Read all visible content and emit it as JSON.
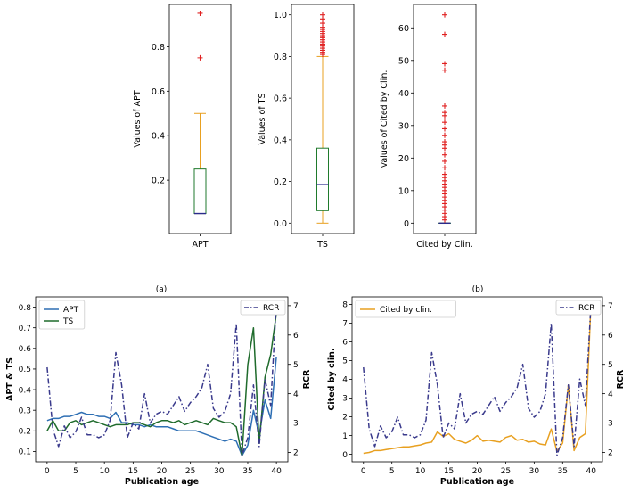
{
  "captions": {
    "a": "(a)",
    "b": "(b)"
  },
  "chart_data": [
    {
      "type": "box",
      "category": "APT",
      "ylabel": "Values of APT",
      "ylim": [
        -0.04,
        0.99
      ],
      "yticks": [
        "0.2",
        "0.4",
        "0.6",
        "0.8"
      ],
      "ytick_values": [
        0.2,
        0.4,
        0.6,
        0.8
      ],
      "whisker_low": 0.05,
      "q1": 0.05,
      "median": 0.05,
      "q3": 0.25,
      "whisker_high": 0.5,
      "outliers": [
        0.75,
        0.95
      ]
    },
    {
      "type": "box",
      "category": "TS",
      "ylabel": "Values of TS",
      "ylim": [
        -0.05,
        1.05
      ],
      "yticks": [
        "0.0",
        "0.2",
        "0.4",
        "0.6",
        "0.8",
        "1.0"
      ],
      "ytick_values": [
        0.0,
        0.2,
        0.4,
        0.6,
        0.8,
        1.0
      ],
      "whisker_low": 0.0,
      "q1": 0.06,
      "median": 0.185,
      "q3": 0.36,
      "whisker_high": 0.8,
      "outliers": [
        0.81,
        0.82,
        0.83,
        0.84,
        0.85,
        0.86,
        0.87,
        0.88,
        0.89,
        0.9,
        0.91,
        0.92,
        0.93,
        0.94,
        0.96,
        0.98,
        1.0
      ]
    },
    {
      "type": "box",
      "category": "Cited by Clin.",
      "ylabel": "Values of Cited by Clin.",
      "ylim": [
        -3.2,
        67.2
      ],
      "yticks": [
        "0",
        "10",
        "20",
        "30",
        "40",
        "50",
        "60"
      ],
      "ytick_values": [
        0,
        10,
        20,
        30,
        40,
        50,
        60
      ],
      "whisker_low": 0,
      "q1": 0,
      "median": 0,
      "q3": 0,
      "whisker_high": 0,
      "outliers": [
        1,
        2,
        3,
        4,
        5,
        6,
        7,
        8,
        9,
        10,
        11,
        12,
        13,
        14,
        15,
        17,
        19,
        21,
        23,
        24,
        25,
        27,
        29,
        31,
        33,
        34,
        36,
        47,
        49,
        58,
        64
      ]
    },
    {
      "type": "line",
      "xlabel": "Publication age",
      "ylabel": "APT & TS",
      "ylabel_right": "RCR",
      "xlim": [
        -2,
        42
      ],
      "ylim": [
        0.05,
        0.85
      ],
      "ylim_right": [
        1.68,
        7.3
      ],
      "xticks": [
        "0",
        "5",
        "10",
        "15",
        "20",
        "25",
        "30",
        "35",
        "40"
      ],
      "xtick_values": [
        0,
        5,
        10,
        15,
        20,
        25,
        30,
        35,
        40
      ],
      "yticks": [
        "0.1",
        "0.2",
        "0.3",
        "0.4",
        "0.5",
        "0.6",
        "0.7",
        "0.8"
      ],
      "ytick_values": [
        0.1,
        0.2,
        0.3,
        0.4,
        0.5,
        0.6,
        0.7,
        0.8
      ],
      "yticks_right": [
        "2",
        "3",
        "4",
        "5",
        "6",
        "7"
      ],
      "ytick_values_right": [
        2,
        3,
        4,
        5,
        6,
        7
      ],
      "legend_left": [
        "APT",
        "TS"
      ],
      "legend_right": [
        "RCR"
      ],
      "x": [
        0,
        1,
        2,
        3,
        4,
        5,
        6,
        7,
        8,
        9,
        10,
        11,
        12,
        13,
        14,
        15,
        16,
        17,
        18,
        19,
        20,
        21,
        22,
        23,
        24,
        25,
        26,
        27,
        28,
        29,
        30,
        31,
        32,
        33,
        34,
        35,
        36,
        37,
        38,
        39,
        40
      ],
      "series": [
        {
          "name": "APT",
          "axis": "left",
          "color": "#2e6fb4",
          "style": "solid",
          "values": [
            0.25,
            0.26,
            0.26,
            0.27,
            0.27,
            0.28,
            0.29,
            0.28,
            0.28,
            0.27,
            0.27,
            0.26,
            0.29,
            0.24,
            0.24,
            0.23,
            0.23,
            0.22,
            0.23,
            0.22,
            0.22,
            0.22,
            0.21,
            0.2,
            0.2,
            0.2,
            0.2,
            0.19,
            0.18,
            0.17,
            0.16,
            0.15,
            0.16,
            0.15,
            0.08,
            0.13,
            0.3,
            0.18,
            0.35,
            0.26,
            0.56
          ]
        },
        {
          "name": "TS",
          "axis": "left",
          "color": "#1f6b2c",
          "style": "solid",
          "values": [
            0.2,
            0.25,
            0.2,
            0.2,
            0.24,
            0.25,
            0.23,
            0.24,
            0.25,
            0.24,
            0.23,
            0.22,
            0.23,
            0.23,
            0.23,
            0.24,
            0.24,
            0.23,
            0.22,
            0.24,
            0.25,
            0.25,
            0.24,
            0.25,
            0.23,
            0.24,
            0.25,
            0.24,
            0.23,
            0.26,
            0.25,
            0.24,
            0.24,
            0.22,
            0.08,
            0.52,
            0.7,
            0.14,
            0.46,
            0.57,
            0.77
          ]
        },
        {
          "name": "RCR",
          "axis": "right",
          "color": "#3a3a8c",
          "style": "dashdot",
          "values": [
            4.9,
            2.8,
            2.2,
            2.9,
            2.5,
            2.7,
            3.2,
            2.6,
            2.6,
            2.5,
            2.6,
            3.1,
            5.4,
            4.3,
            2.5,
            3.0,
            2.8,
            4.0,
            3.0,
            3.3,
            3.4,
            3.3,
            3.6,
            3.9,
            3.4,
            3.7,
            3.9,
            4.2,
            5.0,
            3.5,
            3.2,
            3.4,
            4.0,
            6.4,
            1.9,
            2.5,
            4.3,
            2.2,
            4.5,
            3.6,
            7.1
          ]
        }
      ]
    },
    {
      "type": "line",
      "xlabel": "Publication age",
      "ylabel": "Cited by clin.",
      "ylabel_right": "RCR",
      "xlim": [
        -2,
        42
      ],
      "ylim": [
        -0.4,
        8.4
      ],
      "ylim_right": [
        1.68,
        7.3
      ],
      "xticks": [
        "0",
        "5",
        "10",
        "15",
        "20",
        "25",
        "30",
        "35",
        "40"
      ],
      "xtick_values": [
        0,
        5,
        10,
        15,
        20,
        25,
        30,
        35,
        40
      ],
      "yticks": [
        "0",
        "1",
        "2",
        "3",
        "4",
        "5",
        "6",
        "7",
        "8"
      ],
      "ytick_values": [
        0,
        1,
        2,
        3,
        4,
        5,
        6,
        7,
        8
      ],
      "yticks_right": [
        "2",
        "3",
        "4",
        "5",
        "6",
        "7"
      ],
      "ytick_values_right": [
        2,
        3,
        4,
        5,
        6,
        7
      ],
      "legend_left": [
        "Cited by clin."
      ],
      "legend_right": [
        "RCR"
      ],
      "x": [
        0,
        1,
        2,
        3,
        4,
        5,
        6,
        7,
        8,
        9,
        10,
        11,
        12,
        13,
        14,
        15,
        16,
        17,
        18,
        19,
        20,
        21,
        22,
        23,
        24,
        25,
        26,
        27,
        28,
        29,
        30,
        31,
        32,
        33,
        34,
        35,
        36,
        37,
        38,
        39,
        40
      ],
      "series": [
        {
          "name": "Cited by clin.",
          "axis": "left",
          "color": "#e8a020",
          "style": "solid",
          "values": [
            0.05,
            0.1,
            0.2,
            0.2,
            0.25,
            0.3,
            0.35,
            0.4,
            0.4,
            0.45,
            0.5,
            0.6,
            0.65,
            1.2,
            0.95,
            1.1,
            0.8,
            0.7,
            0.6,
            0.75,
            1.0,
            0.7,
            0.75,
            0.7,
            0.65,
            0.9,
            1.0,
            0.75,
            0.8,
            0.65,
            0.7,
            0.55,
            0.5,
            1.35,
            0.15,
            0.6,
            3.7,
            0.2,
            0.9,
            1.1,
            8.2
          ]
        },
        {
          "name": "RCR",
          "axis": "right",
          "color": "#3a3a8c",
          "style": "dashdot",
          "values": [
            4.9,
            2.8,
            2.2,
            2.9,
            2.5,
            2.7,
            3.2,
            2.6,
            2.6,
            2.5,
            2.6,
            3.1,
            5.4,
            4.3,
            2.5,
            3.0,
            2.8,
            4.0,
            3.0,
            3.3,
            3.4,
            3.3,
            3.6,
            3.9,
            3.4,
            3.7,
            3.9,
            4.2,
            5.0,
            3.5,
            3.2,
            3.4,
            4.0,
            6.4,
            1.9,
            2.5,
            4.3,
            2.2,
            4.5,
            3.6,
            7.1
          ]
        }
      ]
    }
  ]
}
